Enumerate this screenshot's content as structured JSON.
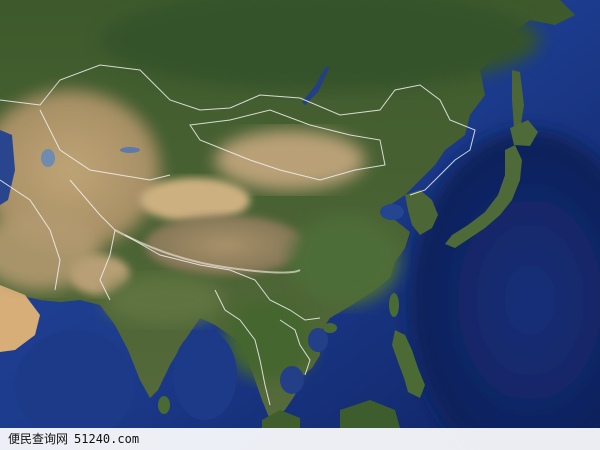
{
  "watermark": {
    "site_name": "便民查询网",
    "url": "51240.com"
  }
}
